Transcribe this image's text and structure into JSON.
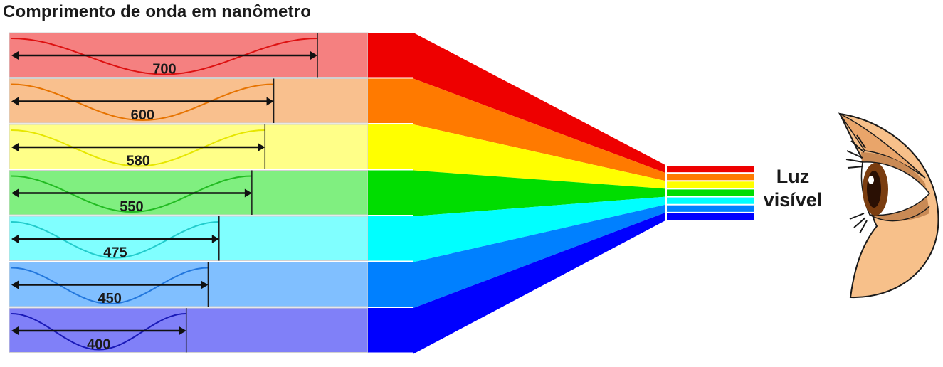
{
  "title": "Comprimento de onda em nanômetro",
  "eye_label": {
    "line1": "Luz",
    "line2": "visível"
  },
  "bands": [
    {
      "wavelength": "700",
      "color": "#ee0000",
      "light": "#f58080",
      "wave": "#dd1111"
    },
    {
      "wavelength": "600",
      "color": "#ff7a00",
      "light": "#f9c08e",
      "wave": "#e67300"
    },
    {
      "wavelength": "580",
      "color": "#ffff00",
      "light": "#ffff88",
      "wave": "#e6e600"
    },
    {
      "wavelength": "550",
      "color": "#00dd00",
      "light": "#80ef80",
      "wave": "#22bb22"
    },
    {
      "wavelength": "475",
      "color": "#00ffff",
      "light": "#80ffff",
      "wave": "#22cccc"
    },
    {
      "wavelength": "450",
      "color": "#0080ff",
      "light": "#80bfff",
      "wave": "#2277dd"
    },
    {
      "wavelength": "400",
      "color": "#0000ff",
      "light": "#8080f8",
      "wave": "#1a1ab8"
    }
  ]
}
